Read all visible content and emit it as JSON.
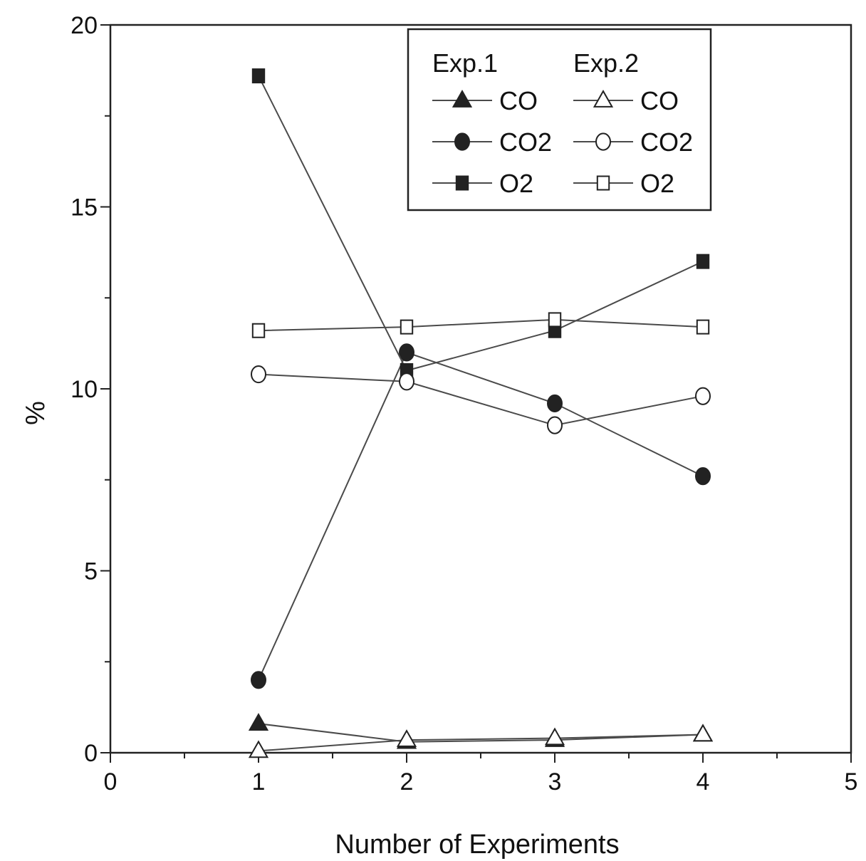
{
  "chart_data": {
    "type": "line",
    "title": "",
    "xlabel": "Number of Experiments",
    "ylabel": "%",
    "xlim": [
      0,
      5
    ],
    "ylim": [
      0,
      20
    ],
    "x_ticks": [
      "0",
      "1",
      "2",
      "3",
      "4",
      "5"
    ],
    "y_ticks": [
      "0",
      "5",
      "10",
      "15",
      "20"
    ],
    "x": [
      1,
      2,
      3,
      4
    ],
    "grid": false,
    "legend": {
      "placement": "top-right",
      "group_titles": [
        "Exp.1",
        "Exp.2"
      ]
    },
    "series": [
      {
        "name": "CO",
        "group": "Exp.1",
        "marker": "triangle",
        "filled": true,
        "values": [
          0.8,
          0.3,
          0.35,
          0.5
        ]
      },
      {
        "name": "CO2",
        "group": "Exp.1",
        "marker": "circle",
        "filled": true,
        "values": [
          2.0,
          11.0,
          9.6,
          7.6
        ]
      },
      {
        "name": "O2",
        "group": "Exp.1",
        "marker": "square",
        "filled": true,
        "values": [
          18.6,
          10.5,
          11.6,
          13.5
        ]
      },
      {
        "name": "CO",
        "group": "Exp.2",
        "marker": "triangle",
        "filled": false,
        "values": [
          0.05,
          0.35,
          0.4,
          0.5
        ]
      },
      {
        "name": "CO2",
        "group": "Exp.2",
        "marker": "circle",
        "filled": false,
        "values": [
          10.4,
          10.2,
          9.0,
          9.8
        ]
      },
      {
        "name": "O2",
        "group": "Exp.2",
        "marker": "square",
        "filled": false,
        "values": [
          11.6,
          11.7,
          11.9,
          11.7
        ]
      }
    ],
    "colors": {
      "line": "#4a4a4a",
      "marker": "#222222",
      "frame": "#222222"
    }
  }
}
